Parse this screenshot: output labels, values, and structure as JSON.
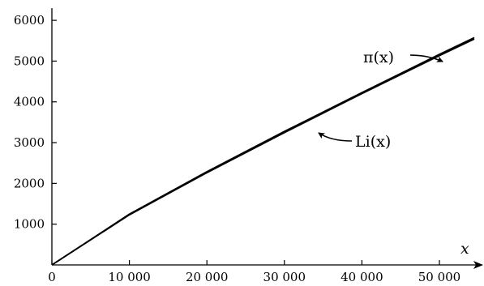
{
  "chart_data": {
    "type": "line",
    "title": "",
    "xlabel": "x",
    "ylabel": "",
    "xlim": [
      0,
      54500
    ],
    "ylim": [
      0,
      6300
    ],
    "grid": false,
    "x_ticks": [
      0,
      10000,
      20000,
      30000,
      40000,
      50000
    ],
    "x_tick_labels": [
      "0",
      "10 000",
      "20 000",
      "30 000",
      "40 000",
      "50 000"
    ],
    "y_ticks": [
      1000,
      2000,
      3000,
      4000,
      5000,
      6000
    ],
    "y_tick_labels": [
      "1000",
      "2000",
      "3000",
      "4000",
      "5000",
      "6000"
    ],
    "series": [
      {
        "name": "π(x)",
        "x": [
          0,
          10000,
          20000,
          30000,
          40000,
          50000,
          54500
        ],
        "y": [
          0,
          1229,
          2262,
          3245,
          4203,
          5133,
          5540
        ]
      },
      {
        "name": "Li(x)",
        "x": [
          0,
          10000,
          20000,
          30000,
          40000,
          50000,
          54500
        ],
        "y": [
          0,
          1246,
          2288,
          3275,
          4227,
          5167,
          5575
        ]
      }
    ],
    "annotations": [
      {
        "text": "π(x)",
        "target": [
          51000,
          5300
        ]
      },
      {
        "text": "Li(x)",
        "target": [
          34000,
          3580
        ]
      }
    ]
  }
}
